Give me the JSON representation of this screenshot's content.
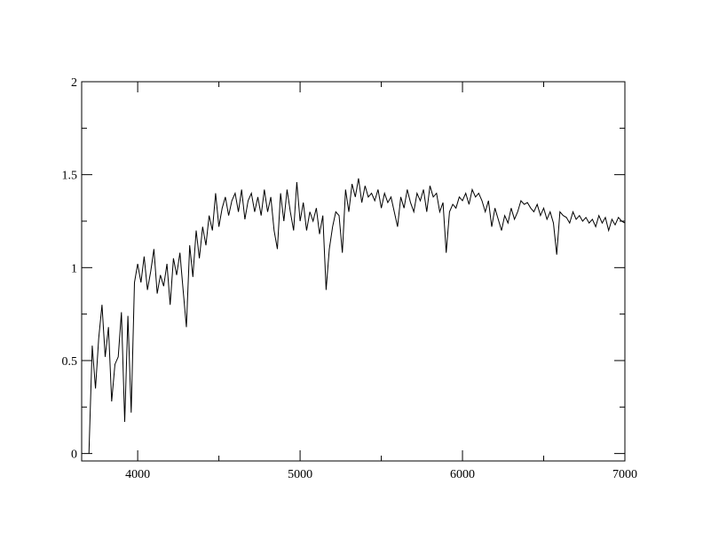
{
  "chart_data": {
    "type": "line",
    "title": "",
    "xlabel": "",
    "ylabel": "",
    "xlim": [
      3655,
      7000
    ],
    "ylim": [
      -0.04,
      2
    ],
    "grid": false,
    "legend": "none",
    "line_color": "#000000",
    "x_ticks": [
      4000,
      5000,
      6000,
      7000
    ],
    "x_tick_labels": [
      "4000",
      "5000",
      "6000",
      "7000"
    ],
    "y_ticks": [
      0,
      0.5,
      1,
      1.5,
      2
    ],
    "y_tick_labels": [
      "0",
      "0.5",
      "1",
      "1.5",
      "2"
    ],
    "x_minor_ticks": [
      4500,
      5500,
      6500
    ],
    "y_minor_ticks": [
      0.25,
      0.75,
      1.25,
      1.75
    ],
    "series": [
      {
        "x": [
          3700,
          3720,
          3740,
          3760,
          3780,
          3800,
          3820,
          3840,
          3860,
          3880,
          3900,
          3920,
          3940,
          3960,
          3980,
          4000,
          4020,
          4040,
          4060,
          4080,
          4100,
          4120,
          4140,
          4160,
          4180,
          4200,
          4220,
          4240,
          4260,
          4280,
          4300,
          4320,
          4340,
          4360,
          4380,
          4400,
          4420,
          4440,
          4460,
          4480,
          4500,
          4520,
          4540,
          4560,
          4580,
          4600,
          4620,
          4640,
          4660,
          4680,
          4700,
          4720,
          4740,
          4760,
          4780,
          4800,
          4820,
          4840,
          4860,
          4880,
          4900,
          4920,
          4940,
          4960,
          4980,
          5000,
          5020,
          5040,
          5060,
          5080,
          5100,
          5120,
          5140,
          5160,
          5180,
          5200,
          5220,
          5240,
          5260,
          5280,
          5300,
          5320,
          5340,
          5360,
          5380,
          5400,
          5420,
          5440,
          5460,
          5480,
          5500,
          5520,
          5540,
          5560,
          5580,
          5600,
          5620,
          5640,
          5660,
          5680,
          5700,
          5720,
          5740,
          5760,
          5780,
          5800,
          5820,
          5840,
          5860,
          5880,
          5900,
          5920,
          5940,
          5960,
          5980,
          6000,
          6020,
          6040,
          6060,
          6080,
          6100,
          6120,
          6140,
          6160,
          6180,
          6200,
          6220,
          6240,
          6260,
          6280,
          6300,
          6320,
          6340,
          6360,
          6380,
          6400,
          6420,
          6440,
          6460,
          6480,
          6500,
          6520,
          6540,
          6560,
          6580,
          6600,
          6620,
          6640,
          6660,
          6680,
          6700,
          6720,
          6740,
          6760,
          6780,
          6800,
          6820,
          6840,
          6860,
          6880,
          6900,
          6920,
          6940,
          6960,
          6980,
          7000
        ],
        "y": [
          0.0,
          0.58,
          0.35,
          0.62,
          0.8,
          0.52,
          0.68,
          0.28,
          0.48,
          0.52,
          0.76,
          0.17,
          0.74,
          0.22,
          0.92,
          1.02,
          0.92,
          1.06,
          0.88,
          0.98,
          1.1,
          0.86,
          0.96,
          0.9,
          1.02,
          0.8,
          1.05,
          0.96,
          1.08,
          0.88,
          0.68,
          1.12,
          0.95,
          1.2,
          1.05,
          1.22,
          1.12,
          1.28,
          1.2,
          1.4,
          1.22,
          1.32,
          1.38,
          1.28,
          1.36,
          1.4,
          1.3,
          1.42,
          1.26,
          1.36,
          1.4,
          1.3,
          1.38,
          1.28,
          1.42,
          1.3,
          1.38,
          1.2,
          1.1,
          1.4,
          1.25,
          1.42,
          1.3,
          1.2,
          1.46,
          1.25,
          1.35,
          1.2,
          1.3,
          1.25,
          1.32,
          1.18,
          1.28,
          0.88,
          1.1,
          1.22,
          1.3,
          1.28,
          1.08,
          1.42,
          1.3,
          1.45,
          1.38,
          1.48,
          1.35,
          1.44,
          1.38,
          1.4,
          1.36,
          1.42,
          1.32,
          1.4,
          1.35,
          1.38,
          1.3,
          1.22,
          1.38,
          1.32,
          1.42,
          1.35,
          1.3,
          1.4,
          1.36,
          1.42,
          1.3,
          1.44,
          1.38,
          1.4,
          1.3,
          1.35,
          1.08,
          1.3,
          1.34,
          1.32,
          1.38,
          1.36,
          1.4,
          1.34,
          1.42,
          1.38,
          1.4,
          1.36,
          1.3,
          1.36,
          1.22,
          1.32,
          1.26,
          1.2,
          1.28,
          1.24,
          1.32,
          1.26,
          1.3,
          1.36,
          1.34,
          1.35,
          1.32,
          1.3,
          1.34,
          1.28,
          1.32,
          1.26,
          1.3,
          1.24,
          1.07,
          1.3,
          1.28,
          1.27,
          1.24,
          1.3,
          1.26,
          1.28,
          1.25,
          1.27,
          1.24,
          1.26,
          1.22,
          1.28,
          1.24,
          1.27,
          1.2,
          1.26,
          1.23,
          1.27,
          1.25,
          1.24
        ]
      }
    ]
  }
}
